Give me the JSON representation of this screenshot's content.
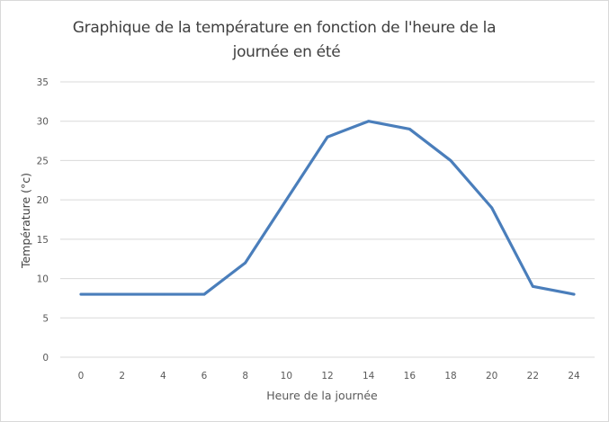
{
  "chart_data": {
    "type": "line",
    "title_lines": [
      "Graphique de la température en fonction de l'heure de la",
      "journée en été"
    ],
    "xlabel": "Heure de la journée",
    "ylabel": "Température (°c)",
    "x": [
      0,
      2,
      4,
      6,
      8,
      10,
      12,
      14,
      16,
      18,
      20,
      22,
      24
    ],
    "series": [
      {
        "values": [
          8,
          8,
          8,
          8,
          12,
          20,
          28,
          30,
          29,
          25,
          19,
          9,
          8
        ],
        "color": "#4a7ebb"
      }
    ],
    "ylim": [
      0,
      35
    ],
    "yticks": [
      0,
      5,
      10,
      15,
      20,
      25,
      30,
      35
    ],
    "grid": true,
    "legend": "none"
  },
  "colors": {
    "line": "#4a7ebb",
    "grid": "#d9d9d9",
    "text": "#595959",
    "title": "#404040"
  }
}
